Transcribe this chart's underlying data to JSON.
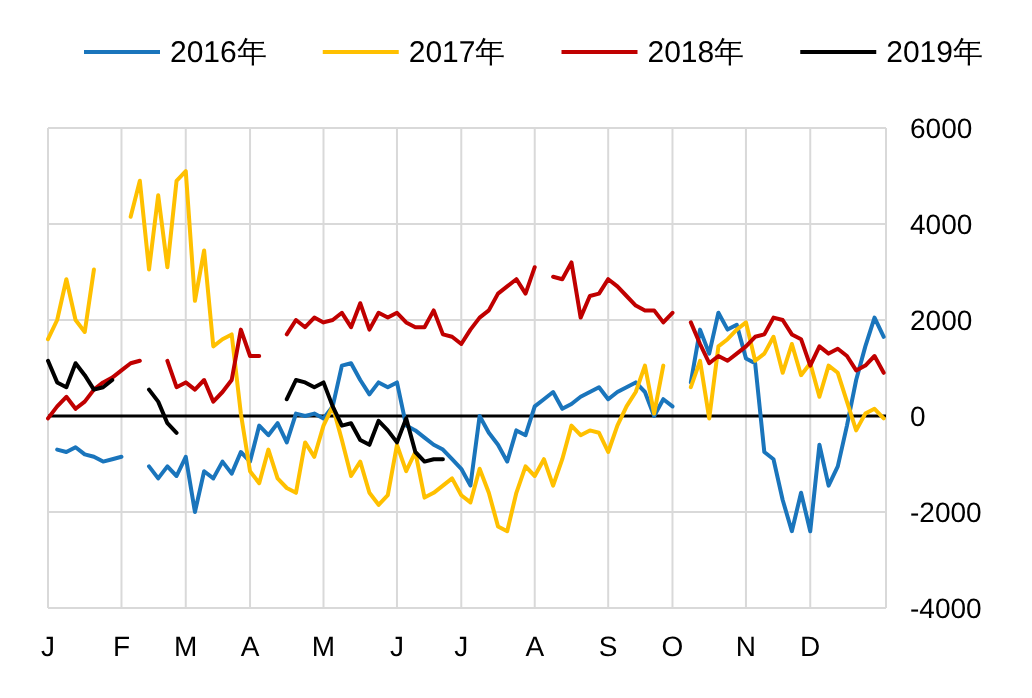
{
  "chart_data": {
    "type": "line",
    "legend": "top",
    "grid": true,
    "line_style": "solid",
    "marker": "none",
    "ylim": [
      -4000,
      6000
    ],
    "yticks": [
      -4000,
      -2000,
      0,
      2000,
      4000,
      6000
    ],
    "categories": [
      "J",
      null,
      null,
      null,
      null,
      null,
      null,
      null,
      "F",
      null,
      null,
      null,
      null,
      null,
      null,
      "M",
      null,
      null,
      null,
      null,
      null,
      null,
      "A",
      null,
      null,
      null,
      null,
      null,
      null,
      null,
      "M",
      null,
      null,
      null,
      null,
      null,
      null,
      null,
      "J",
      null,
      null,
      null,
      null,
      null,
      null,
      "J",
      null,
      null,
      null,
      null,
      null,
      null,
      null,
      "A",
      null,
      null,
      null,
      null,
      null,
      null,
      null,
      "S",
      null,
      null,
      null,
      null,
      null,
      null,
      "O",
      null,
      null,
      null,
      null,
      null,
      null,
      null,
      "N",
      null,
      null,
      null,
      null,
      null,
      null,
      "D",
      null,
      null,
      null,
      null,
      null,
      null,
      null,
      null
    ],
    "ref_lines": [
      {
        "axis": "y",
        "value": 0,
        "label": null,
        "color": "#000000"
      }
    ],
    "series": [
      {
        "name": "2016年",
        "color": "#1a75bc",
        "values": [
          null,
          -700,
          -750,
          -650,
          -800,
          -850,
          -950,
          -900,
          -850,
          null,
          null,
          -1050,
          -1300,
          -1050,
          -1250,
          -850,
          -2000,
          -1150,
          -1300,
          -950,
          -1200,
          -750,
          -950,
          -200,
          -400,
          -150,
          -550,
          50,
          0,
          50,
          -50,
          200,
          1050,
          1100,
          750,
          450,
          700,
          600,
          700,
          -200,
          -300,
          -450,
          -600,
          -700,
          -900,
          -1100,
          -1450,
          0,
          -350,
          -600,
          -950,
          -300,
          -400,
          200,
          350,
          500,
          150,
          250,
          400,
          500,
          600,
          350,
          500,
          600,
          700,
          500,
          0,
          350,
          200,
          null,
          700,
          1800,
          1300,
          2150,
          1800,
          1900,
          1200,
          1100,
          -750,
          -900,
          -1750,
          -2400,
          -1600,
          -2400,
          -600,
          -1450,
          -1050,
          -200,
          750,
          1450,
          2050,
          1650
        ]
      },
      {
        "name": "2017年",
        "color": "#ffc000",
        "values": [
          1600,
          2000,
          2850,
          2000,
          1750,
          3050,
          null,
          null,
          null,
          4150,
          4900,
          3050,
          4600,
          3100,
          4900,
          5100,
          2400,
          3450,
          1450,
          1600,
          1700,
          50,
          -1150,
          -1400,
          -700,
          -1300,
          -1500,
          -1600,
          -550,
          -850,
          -200,
          200,
          -500,
          -1250,
          -950,
          -1600,
          -1850,
          -1650,
          -600,
          -1150,
          -750,
          -1700,
          -1600,
          -1450,
          -1300,
          -1650,
          -1800,
          -1100,
          -1600,
          -2300,
          -2400,
          -1600,
          -1050,
          -1250,
          -900,
          -1450,
          -900,
          -200,
          -400,
          -300,
          -350,
          -750,
          -200,
          200,
          500,
          1050,
          50,
          1050,
          null,
          null,
          600,
          1150,
          -50,
          1450,
          1600,
          1800,
          1950,
          1150,
          1300,
          1650,
          900,
          1500,
          850,
          1100,
          400,
          1050,
          900,
          300,
          -300,
          50,
          150,
          -50
        ]
      },
      {
        "name": "2018年",
        "color": "#c00000",
        "values": [
          -50,
          200,
          400,
          150,
          300,
          550,
          700,
          800,
          950,
          1100,
          1150,
          null,
          null,
          1150,
          600,
          700,
          550,
          750,
          300,
          500,
          750,
          1800,
          1250,
          1250,
          null,
          null,
          1700,
          2000,
          1850,
          2050,
          1950,
          2000,
          2150,
          1850,
          2350,
          1800,
          2150,
          2050,
          2150,
          1950,
          1850,
          1850,
          2200,
          1700,
          1650,
          1500,
          1800,
          2050,
          2200,
          2550,
          2700,
          2850,
          2550,
          3100,
          null,
          2900,
          2850,
          3200,
          2050,
          2500,
          2550,
          2850,
          2700,
          2500,
          2300,
          2200,
          2200,
          1950,
          2150,
          null,
          1950,
          1500,
          1100,
          1250,
          1150,
          1300,
          1450,
          1650,
          1700,
          2050,
          2000,
          1700,
          1600,
          1050,
          1450,
          1300,
          1400,
          1250,
          950,
          1050,
          1250,
          900
        ]
      },
      {
        "name": "2019年",
        "color": "#000000",
        "values": [
          1150,
          700,
          600,
          1100,
          850,
          550,
          600,
          750,
          null,
          null,
          null,
          550,
          300,
          -150,
          -350,
          null,
          null,
          null,
          null,
          null,
          null,
          null,
          null,
          null,
          null,
          null,
          350,
          750,
          700,
          600,
          700,
          200,
          -200,
          -150,
          -500,
          -600,
          -100,
          -300,
          -550,
          -50,
          -750,
          -950,
          -900,
          -900,
          null,
          null,
          null,
          null,
          null,
          null,
          null,
          null,
          null,
          null,
          null,
          null,
          null,
          null,
          null,
          null,
          null,
          null,
          null,
          null,
          null,
          null,
          null,
          null,
          null,
          null,
          null,
          null,
          null,
          null,
          null,
          null,
          null,
          null,
          null,
          null,
          null,
          null,
          null,
          null,
          null,
          null,
          null,
          null,
          null,
          null,
          null,
          null
        ]
      }
    ]
  }
}
